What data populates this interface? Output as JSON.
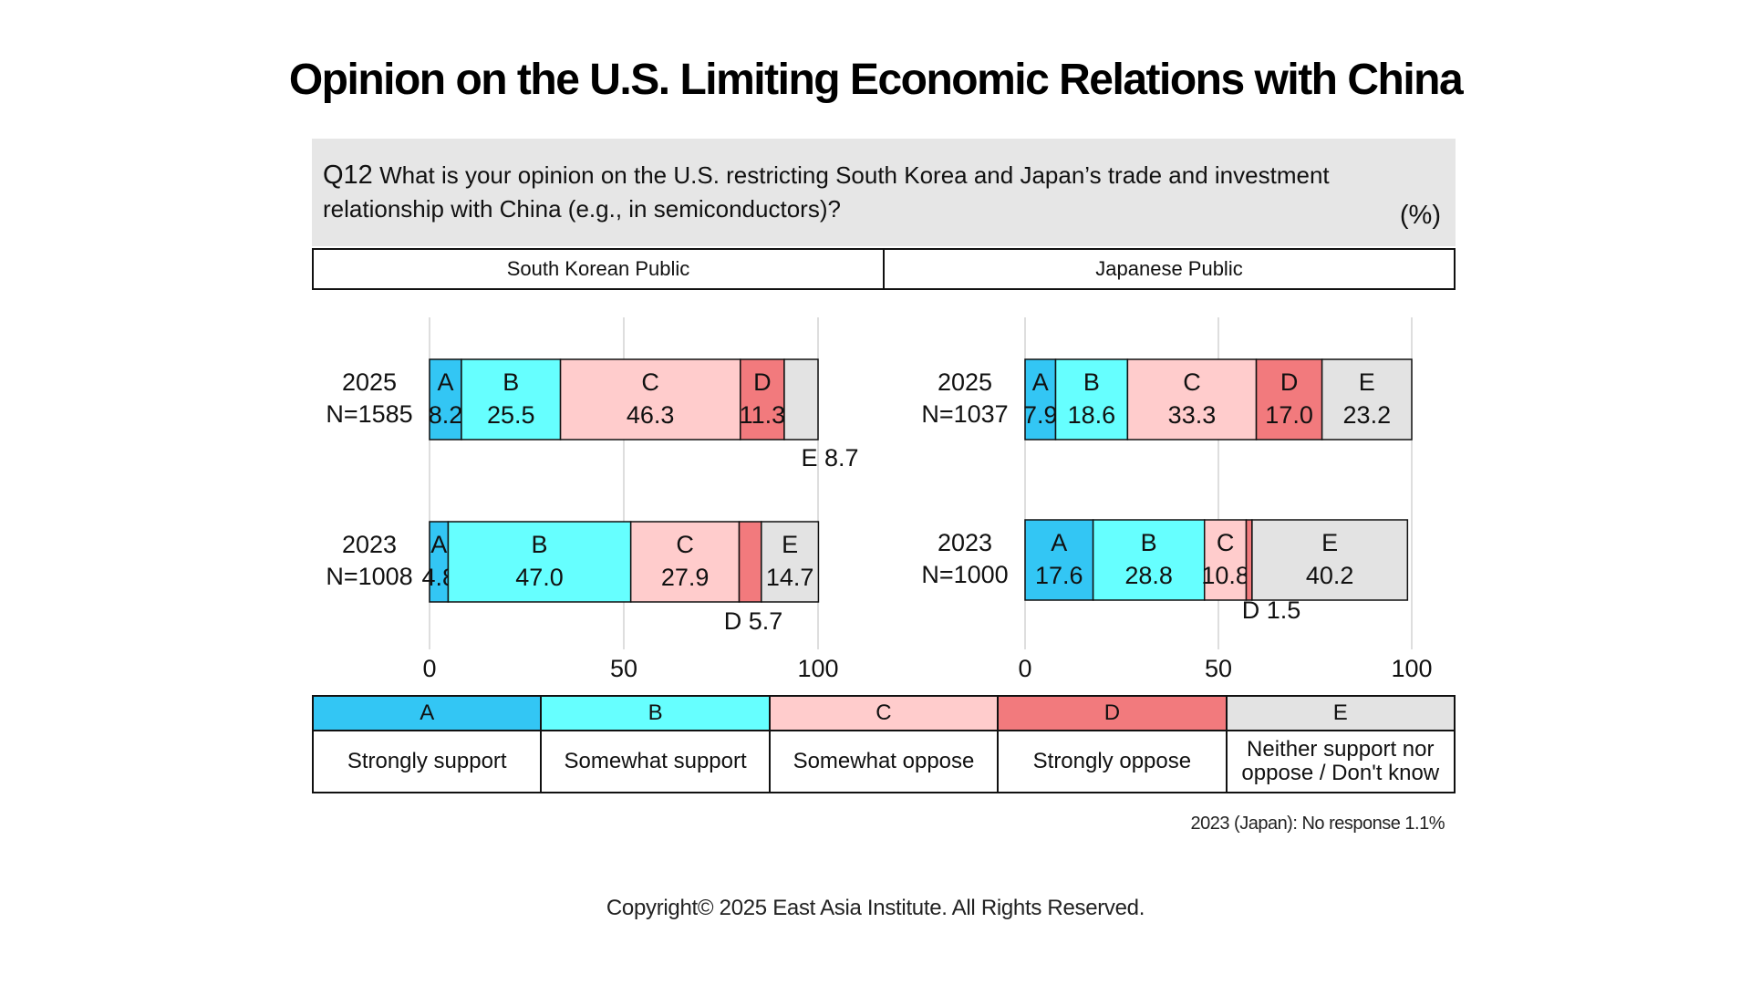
{
  "title": "Opinion on the U.S. Limiting Economic Relations with China",
  "question": {
    "number": "Q12",
    "text": "What is your opinion on the U.S. restricting South Korea and Japan’s trade and investment relationship with China (e.g., in semiconductors)?",
    "unit": "(%)"
  },
  "groups": [
    "South Korean Public",
    "Japanese Public"
  ],
  "colors": {
    "A": "#33c6f4",
    "B": "#66ffff",
    "C": "#ffcccc",
    "D": "#f27a7d",
    "E": "#e3e3e3"
  },
  "legend": [
    {
      "key": "A",
      "label": "Strongly support"
    },
    {
      "key": "B",
      "label": "Somewhat support"
    },
    {
      "key": "C",
      "label": "Somewhat oppose"
    },
    {
      "key": "D",
      "label": "Strongly oppose"
    },
    {
      "key": "E",
      "label": "Neither support nor oppose / Don't know"
    }
  ],
  "chart_data": [
    {
      "type": "bar",
      "orientation": "horizontal",
      "stacked": true,
      "group": "South Korean Public",
      "xlim": [
        0,
        100
      ],
      "xticks": [
        0,
        50,
        100
      ],
      "grid": true,
      "categories": [
        "2025\nN=1585",
        "2023\nN=1008"
      ],
      "rows": [
        {
          "year": "2025",
          "n": "N=1585",
          "values": [
            8.2,
            25.5,
            46.3,
            11.3,
            8.7
          ]
        },
        {
          "year": "2023",
          "n": "N=1008",
          "values": [
            4.8,
            47.0,
            27.9,
            5.7,
            14.7
          ]
        }
      ],
      "series": [
        {
          "name": "A",
          "values": [
            8.2,
            4.8
          ]
        },
        {
          "name": "B",
          "values": [
            25.5,
            47.0
          ]
        },
        {
          "name": "C",
          "values": [
            46.3,
            27.9
          ]
        },
        {
          "name": "D",
          "values": [
            11.3,
            5.7
          ]
        },
        {
          "name": "E",
          "values": [
            8.7,
            14.7
          ]
        }
      ]
    },
    {
      "type": "bar",
      "orientation": "horizontal",
      "stacked": true,
      "group": "Japanese Public",
      "xlim": [
        0,
        100
      ],
      "xticks": [
        0,
        50,
        100
      ],
      "grid": true,
      "categories": [
        "2025\nN=1037",
        "2023\nN=1000"
      ],
      "rows": [
        {
          "year": "2025",
          "n": "N=1037",
          "values": [
            7.9,
            18.6,
            33.3,
            17.0,
            23.2
          ]
        },
        {
          "year": "2023",
          "n": "N=1000",
          "values": [
            17.6,
            28.8,
            10.8,
            1.5,
            40.2
          ]
        }
      ],
      "series": [
        {
          "name": "A",
          "values": [
            7.9,
            17.6
          ]
        },
        {
          "name": "B",
          "values": [
            18.6,
            28.8
          ]
        },
        {
          "name": "C",
          "values": [
            33.3,
            10.8
          ]
        },
        {
          "name": "D",
          "values": [
            17.0,
            1.5
          ]
        },
        {
          "name": "E",
          "values": [
            23.2,
            40.2
          ]
        }
      ]
    }
  ],
  "note": "2023 (Japan): No response 1.1%",
  "copyright": "Copyright© 2025 East Asia Institute. All Rights Reserved."
}
